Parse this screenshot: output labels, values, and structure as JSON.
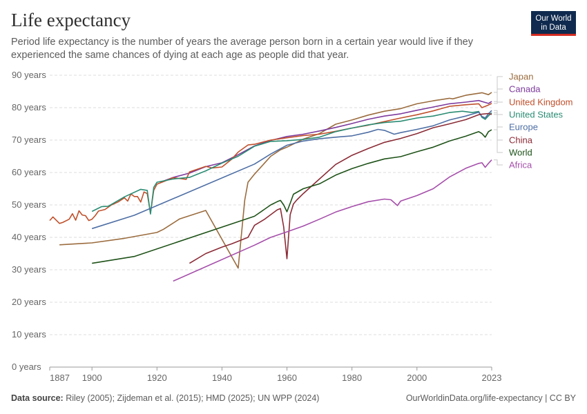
{
  "title": "Life expectancy",
  "subtitle": "Period life expectancy is the number of years the average person born in a certain year would live if they experienced the same chances of dying at each age as people did that year.",
  "logo": {
    "line1": "Our World",
    "line2": "in Data"
  },
  "footer": {
    "source_label": "Data source:",
    "source_text": " Riley (2005); Zijdeman et al. (2015); HMD (2025); UN WPP (2024)",
    "url": "OurWorldinData.org/life-expectancy | CC BY"
  },
  "chart_data": {
    "type": "line",
    "title": "Life expectancy",
    "xlabel": "",
    "ylabel": "",
    "xlim": [
      1887,
      2023
    ],
    "ylim": [
      0,
      90
    ],
    "x_ticks": [
      1887,
      1900,
      1920,
      1940,
      1960,
      1980,
      2000,
      2023
    ],
    "y_ticks": [
      {
        "value": 0,
        "label": "0 years"
      },
      {
        "value": 10,
        "label": "10 years"
      },
      {
        "value": 20,
        "label": "20 years"
      },
      {
        "value": 30,
        "label": "30 years"
      },
      {
        "value": 40,
        "label": "40 years"
      },
      {
        "value": 50,
        "label": "50 years"
      },
      {
        "value": 60,
        "label": "60 years"
      },
      {
        "value": 70,
        "label": "70 years"
      },
      {
        "value": 80,
        "label": "80 years"
      },
      {
        "value": 90,
        "label": "90 years"
      }
    ],
    "grid": "horizontal-dashed",
    "legend": "right-end-labels",
    "series": [
      {
        "name": "Japan",
        "color": "#9a6b3d",
        "points": [
          [
            1890,
            37.7
          ],
          [
            1900,
            38.3
          ],
          [
            1910,
            39.7
          ],
          [
            1920,
            41.5
          ],
          [
            1922,
            42.5
          ],
          [
            1927,
            45.7
          ],
          [
            1935,
            48.3
          ],
          [
            1945,
            30.5
          ],
          [
            1947,
            51.5
          ],
          [
            1948,
            57
          ],
          [
            1950,
            59.5
          ],
          [
            1955,
            65
          ],
          [
            1958,
            67
          ],
          [
            1960,
            67.8
          ],
          [
            1965,
            70.3
          ],
          [
            1970,
            72
          ],
          [
            1975,
            74.9
          ],
          [
            1980,
            76.2
          ],
          [
            1985,
            77.7
          ],
          [
            1990,
            78.9
          ],
          [
            1995,
            79.7
          ],
          [
            2000,
            81.2
          ],
          [
            2005,
            82.1
          ],
          [
            2010,
            82.9
          ],
          [
            2011,
            82.7
          ],
          [
            2015,
            83.8
          ],
          [
            2020,
            84.6
          ],
          [
            2022,
            84.0
          ],
          [
            2023,
            84.7
          ]
        ]
      },
      {
        "name": "Canada",
        "color": "#7d3a9c",
        "points": [
          [
            1921,
            57
          ],
          [
            1925,
            58.5
          ],
          [
            1930,
            59.8
          ],
          [
            1935,
            61.8
          ],
          [
            1940,
            63
          ],
          [
            1945,
            65.5
          ],
          [
            1950,
            68.2
          ],
          [
            1955,
            69.9
          ],
          [
            1960,
            71.1
          ],
          [
            1965,
            71.8
          ],
          [
            1970,
            72.8
          ],
          [
            1975,
            73.9
          ],
          [
            1980,
            75.1
          ],
          [
            1985,
            76.4
          ],
          [
            1990,
            77.4
          ],
          [
            1995,
            78.1
          ],
          [
            2000,
            79.2
          ],
          [
            2005,
            80.2
          ],
          [
            2010,
            81.2
          ],
          [
            2015,
            81.7
          ],
          [
            2019,
            82.2
          ],
          [
            2021,
            81.6
          ],
          [
            2022,
            81.3
          ],
          [
            2023,
            81.9
          ]
        ]
      },
      {
        "name": "United Kingdom",
        "color": "#c0502b",
        "points": [
          [
            1887,
            45.2
          ],
          [
            1888,
            46.3
          ],
          [
            1890,
            44.3
          ],
          [
            1891,
            44.6
          ],
          [
            1893,
            45.6
          ],
          [
            1894,
            47.3
          ],
          [
            1895,
            45.3
          ],
          [
            1896,
            48.2
          ],
          [
            1897,
            46.9
          ],
          [
            1898,
            46.7
          ],
          [
            1899,
            45.2
          ],
          [
            1900,
            45.6
          ],
          [
            1901,
            46.7
          ],
          [
            1902,
            48.1
          ],
          [
            1904,
            48.6
          ],
          [
            1906,
            50.0
          ],
          [
            1908,
            50.9
          ],
          [
            1910,
            52.2
          ],
          [
            1911,
            51.2
          ],
          [
            1912,
            53.4
          ],
          [
            1913,
            52.6
          ],
          [
            1914,
            52.6
          ],
          [
            1915,
            50.9
          ],
          [
            1916,
            54.0
          ],
          [
            1917,
            53.5
          ],
          [
            1918,
            47.5
          ],
          [
            1919,
            54.5
          ],
          [
            1920,
            56.4
          ],
          [
            1922,
            57.2
          ],
          [
            1925,
            58.4
          ],
          [
            1929,
            57.9
          ],
          [
            1930,
            60.2
          ],
          [
            1935,
            61.9
          ],
          [
            1937,
            61.4
          ],
          [
            1940,
            61.7
          ],
          [
            1943,
            64.1
          ],
          [
            1945,
            66.3
          ],
          [
            1948,
            68.5
          ],
          [
            1950,
            68.7
          ],
          [
            1955,
            70.0
          ],
          [
            1960,
            70.7
          ],
          [
            1965,
            71.4
          ],
          [
            1970,
            71.8
          ],
          [
            1975,
            72.7
          ],
          [
            1980,
            73.7
          ],
          [
            1985,
            74.6
          ],
          [
            1990,
            75.7
          ],
          [
            1995,
            76.8
          ],
          [
            2000,
            77.8
          ],
          [
            2005,
            79.0
          ],
          [
            2010,
            80.4
          ],
          [
            2015,
            80.9
          ],
          [
            2019,
            81.2
          ],
          [
            2020,
            80.0
          ],
          [
            2021,
            80.4
          ],
          [
            2022,
            80.8
          ],
          [
            2023,
            81.3
          ]
        ]
      },
      {
        "name": "United States",
        "color": "#2a8c73",
        "points": [
          [
            1900,
            48.0
          ],
          [
            1903,
            49.5
          ],
          [
            1905,
            49.6
          ],
          [
            1910,
            52.5
          ],
          [
            1915,
            54.8
          ],
          [
            1917,
            54.5
          ],
          [
            1918,
            47.2
          ],
          [
            1919,
            55.4
          ],
          [
            1920,
            57.0
          ],
          [
            1925,
            58.0
          ],
          [
            1930,
            58.5
          ],
          [
            1935,
            60.5
          ],
          [
            1940,
            62.9
          ],
          [
            1945,
            65.0
          ],
          [
            1950,
            68.1
          ],
          [
            1955,
            69.6
          ],
          [
            1960,
            69.8
          ],
          [
            1965,
            70.2
          ],
          [
            1970,
            70.9
          ],
          [
            1975,
            72.6
          ],
          [
            1980,
            73.7
          ],
          [
            1985,
            74.7
          ],
          [
            1990,
            75.4
          ],
          [
            1995,
            75.8
          ],
          [
            2000,
            76.8
          ],
          [
            2005,
            77.4
          ],
          [
            2010,
            78.5
          ],
          [
            2014,
            78.9
          ],
          [
            2017,
            78.5
          ],
          [
            2019,
            78.8
          ],
          [
            2020,
            77.0
          ],
          [
            2021,
            76.4
          ],
          [
            2022,
            77.5
          ],
          [
            2023,
            78.4
          ]
        ]
      },
      {
        "name": "Europe",
        "color": "#4d6ea4",
        "points": [
          [
            1900,
            42.7
          ],
          [
            1913,
            46.8
          ],
          [
            1950,
            62.6
          ],
          [
            1955,
            65.7
          ],
          [
            1960,
            68.4
          ],
          [
            1965,
            69.7
          ],
          [
            1970,
            70.4
          ],
          [
            1975,
            70.9
          ],
          [
            1980,
            71.3
          ],
          [
            1985,
            72.4
          ],
          [
            1988,
            73.3
          ],
          [
            1990,
            73.0
          ],
          [
            1993,
            71.8
          ],
          [
            1995,
            72.3
          ],
          [
            2000,
            73.3
          ],
          [
            2005,
            74.4
          ],
          [
            2010,
            76.2
          ],
          [
            2015,
            77.4
          ],
          [
            2019,
            78.6
          ],
          [
            2020,
            77.3
          ],
          [
            2021,
            76.8
          ],
          [
            2022,
            78.1
          ],
          [
            2023,
            79.1
          ]
        ]
      },
      {
        "name": "China",
        "color": "#8a2b35",
        "points": [
          [
            1930,
            32.0
          ],
          [
            1935,
            35
          ],
          [
            1940,
            37
          ],
          [
            1943,
            38
          ],
          [
            1948,
            40
          ],
          [
            1950,
            43.7
          ],
          [
            1953,
            45.5
          ],
          [
            1955,
            47
          ],
          [
            1957,
            48.5
          ],
          [
            1958,
            48.9
          ],
          [
            1959,
            43.2
          ],
          [
            1960,
            33.4
          ],
          [
            1961,
            47
          ],
          [
            1962,
            50.3
          ],
          [
            1963,
            51.5
          ],
          [
            1965,
            53.5
          ],
          [
            1970,
            58.0
          ],
          [
            1975,
            62.5
          ],
          [
            1980,
            65.3
          ],
          [
            1985,
            67.4
          ],
          [
            1990,
            69.3
          ],
          [
            1995,
            70.5
          ],
          [
            2000,
            72.0
          ],
          [
            2005,
            73.8
          ],
          [
            2010,
            75.0
          ],
          [
            2015,
            76.3
          ],
          [
            2019,
            77.8
          ],
          [
            2020,
            78.0
          ],
          [
            2022,
            78.2
          ],
          [
            2023,
            77.9
          ]
        ]
      },
      {
        "name": "World",
        "color": "#1e5218",
        "points": [
          [
            1900,
            32.0
          ],
          [
            1913,
            34.1
          ],
          [
            1950,
            46.5
          ],
          [
            1955,
            50.0
          ],
          [
            1957,
            51.0
          ],
          [
            1958,
            51.4
          ],
          [
            1959,
            50.0
          ],
          [
            1960,
            47.9
          ],
          [
            1961,
            50.5
          ],
          [
            1962,
            53.3
          ],
          [
            1965,
            55.0
          ],
          [
            1970,
            56.5
          ],
          [
            1975,
            59.2
          ],
          [
            1980,
            61.2
          ],
          [
            1985,
            62.8
          ],
          [
            1990,
            64.2
          ],
          [
            1995,
            64.9
          ],
          [
            2000,
            66.4
          ],
          [
            2005,
            67.8
          ],
          [
            2010,
            69.7
          ],
          [
            2015,
            71.2
          ],
          [
            2019,
            72.6
          ],
          [
            2020,
            72.0
          ],
          [
            2021,
            70.9
          ],
          [
            2022,
            72.6
          ],
          [
            2023,
            73.2
          ]
        ]
      },
      {
        "name": "Africa",
        "color": "#a54eaa",
        "points": [
          [
            1925,
            26.5
          ],
          [
            1950,
            37.6
          ],
          [
            1955,
            40
          ],
          [
            1960,
            41.7
          ],
          [
            1965,
            43.5
          ],
          [
            1970,
            45.6
          ],
          [
            1975,
            47.8
          ],
          [
            1980,
            49.5
          ],
          [
            1985,
            51.0
          ],
          [
            1990,
            51.8
          ],
          [
            1992,
            51.6
          ],
          [
            1994,
            49.8
          ],
          [
            1995,
            51.2
          ],
          [
            2000,
            52.9
          ],
          [
            2005,
            55.0
          ],
          [
            2010,
            58.6
          ],
          [
            2015,
            61.3
          ],
          [
            2019,
            62.8
          ],
          [
            2020,
            63.0
          ],
          [
            2021,
            61.6
          ],
          [
            2022,
            62.8
          ],
          [
            2023,
            63.9
          ]
        ]
      }
    ]
  }
}
